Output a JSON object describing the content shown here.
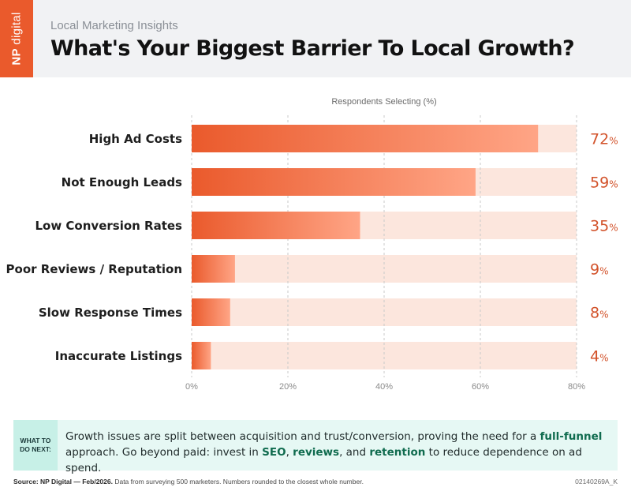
{
  "header": {
    "logo_prefix": "NP",
    "logo_suffix": "digital",
    "subtitle": "Local Marketing Insights",
    "title": "What's Your Biggest Barrier To Local Growth?"
  },
  "colors": {
    "accent": "#ea5a2c",
    "bar_light": "#ffa586",
    "track": "#fce6dd",
    "value_text": "#d2522a"
  },
  "chart_data": {
    "type": "bar",
    "orientation": "horizontal",
    "title": "What's Your Biggest Barrier To Local Growth?",
    "xlabel": "Respondents Selecting (%)",
    "ylabel": "",
    "categories": [
      "High Ad Costs",
      "Not Enough Leads",
      "Low Conversion Rates",
      "Poor Reviews / Reputation",
      "Slow Response Times",
      "Inaccurate Listings"
    ],
    "values": [
      72,
      59,
      35,
      9,
      8,
      4
    ],
    "value_labels": [
      "72",
      "59",
      "35",
      "9",
      "8",
      "4"
    ],
    "value_unit": "%",
    "xlim": [
      0,
      80
    ],
    "ticks": [
      0,
      20,
      40,
      60,
      80
    ],
    "tick_labels": [
      "0%",
      "20%",
      "40%",
      "60%",
      "80%"
    ],
    "grid": true
  },
  "callout": {
    "tag_line1": "WHAT TO",
    "tag_line2": "DO NEXT:",
    "text_1": "Growth issues are split between acquisition and trust/conversion, proving the need for a ",
    "bold_1": "full-funnel",
    "text_2": " approach. Go beyond paid: invest in ",
    "bold_2": "SEO",
    "text_3": ", ",
    "bold_3": "reviews",
    "text_4": ", and ",
    "bold_4": "retention",
    "text_5": " to reduce dependence on ad spend."
  },
  "footer": {
    "source_label": "Source: NP Digital — Feb/2026.",
    "source_text": " Data from surveying 500 marketers. Numbers rounded to the closest whole number.",
    "code": "02140269A_K"
  }
}
